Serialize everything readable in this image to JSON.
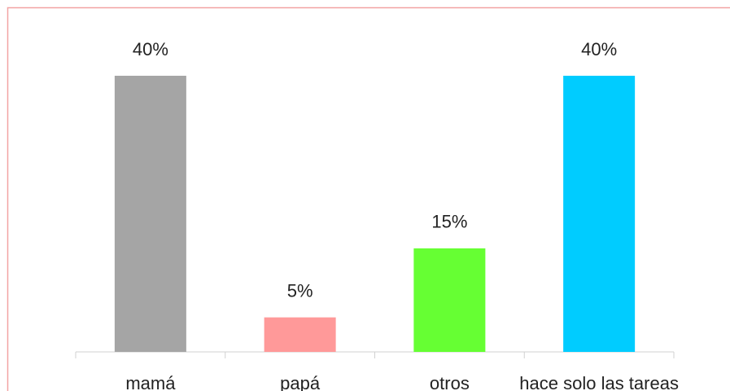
{
  "chart_data": {
    "type": "bar",
    "categories": [
      "mamá",
      "papá",
      "otros",
      "hace solo las tareas"
    ],
    "values": [
      40,
      5,
      15,
      40
    ],
    "value_labels": [
      "40%",
      "5%",
      "15%",
      "40%"
    ],
    "colors": [
      "#a5a5a5",
      "#ff9999",
      "#66ff33",
      "#00ccff"
    ]
  }
}
